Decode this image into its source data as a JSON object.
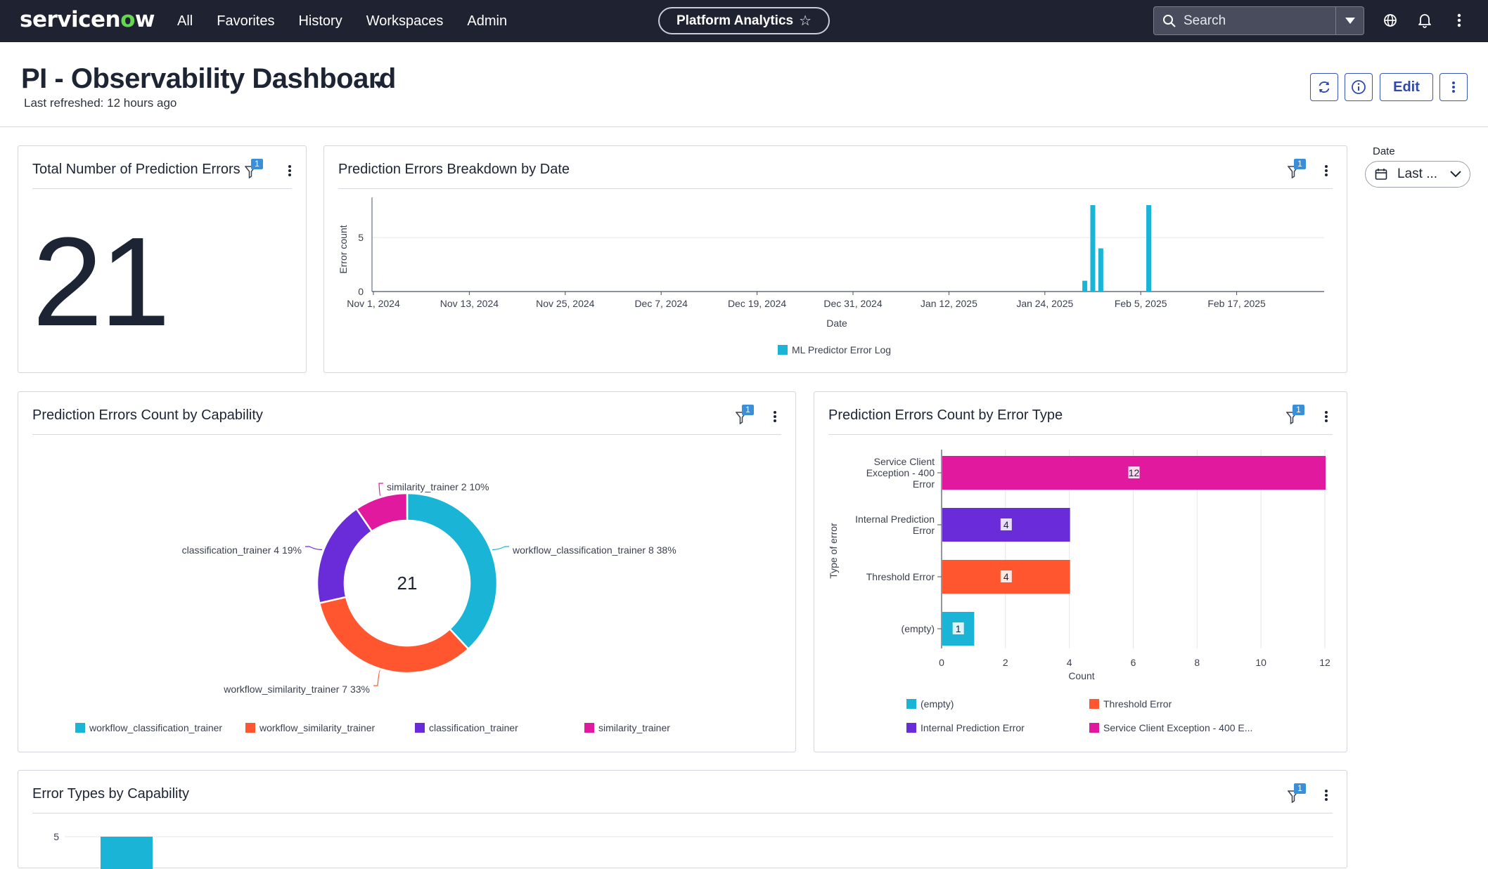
{
  "nav": {
    "logo_pre": "servicen",
    "logo_accent": "o",
    "logo_post": "w",
    "items": [
      "All",
      "Favorites",
      "History",
      "Workspaces",
      "Admin"
    ],
    "app_pill": "Platform Analytics",
    "search_placeholder": "Search"
  },
  "dashboard": {
    "title": "PI - Observability Dashboard",
    "refreshed": "Last refreshed: 12 hours ago",
    "edit_label": "Edit",
    "date_filter_label": "Date",
    "date_filter_value": "Last ..."
  },
  "cards": {
    "total": {
      "title": "Total Number of Prediction Errors",
      "value": "21",
      "filter_count": "1"
    },
    "by_date": {
      "title": "Prediction Errors Breakdown by Date",
      "filter_count": "1"
    },
    "by_capability": {
      "title": "Prediction Errors Count by Capability",
      "filter_count": "1"
    },
    "by_error_type": {
      "title": "Prediction Errors Count by Error Type",
      "filter_count": "1"
    },
    "types_by_capability": {
      "title": "Error Types by Capability",
      "filter_count": "1"
    }
  },
  "colors": {
    "cyan": "#1ab5d6",
    "orange": "#ff5630",
    "purple": "#6a2bd9",
    "magenta": "#e0199f"
  },
  "chart_data": [
    {
      "type": "bar",
      "title": "Prediction Errors Breakdown by Date",
      "xlabel": "Date",
      "ylabel": "Error count",
      "x_ticks": [
        "Nov 1, 2024",
        "Nov 13, 2024",
        "Nov 25, 2024",
        "Dec 7, 2024",
        "Dec 19, 2024",
        "Dec 31, 2024",
        "Jan 12, 2025",
        "Jan 24, 2025",
        "Feb 5, 2025",
        "Feb 17, 2025"
      ],
      "y_ticks": [
        0,
        5
      ],
      "ylim": [
        0,
        8
      ],
      "series": [
        {
          "name": "ML Predictor Error Log",
          "points": [
            {
              "x": "Jan 29, 2025",
              "y": 1
            },
            {
              "x": "Jan 30, 2025",
              "y": 8
            },
            {
              "x": "Jan 31, 2025",
              "y": 4
            },
            {
              "x": "Feb 6, 2025",
              "y": 8
            }
          ]
        }
      ]
    },
    {
      "type": "pie",
      "title": "Prediction Errors Count by Capability",
      "center_label": "21",
      "slices": [
        {
          "label": "workflow_classification_trainer",
          "value": 8,
          "percent": "38%"
        },
        {
          "label": "workflow_similarity_trainer",
          "value": 7,
          "percent": "33%"
        },
        {
          "label": "classification_trainer",
          "value": 4,
          "percent": "19%"
        },
        {
          "label": "similarity_trainer",
          "value": 2,
          "percent": "10%"
        }
      ]
    },
    {
      "type": "bar",
      "orientation": "horizontal",
      "title": "Prediction Errors Count by Error Type",
      "xlabel": "Count",
      "ylabel": "Type of error",
      "x_ticks": [
        0,
        2,
        4,
        6,
        8,
        10,
        12
      ],
      "xlim": [
        0,
        12
      ],
      "bars": [
        {
          "label_lines": [
            "Service Client",
            "Exception - 400",
            "Error"
          ],
          "value": 12
        },
        {
          "label_lines": [
            "Internal Prediction",
            "Error"
          ],
          "value": 4
        },
        {
          "label_lines": [
            "Threshold Error"
          ],
          "value": 4
        },
        {
          "label_lines": [
            "(empty)"
          ],
          "value": 1
        }
      ],
      "legend": [
        "(empty)",
        "Threshold Error",
        "Internal Prediction Error",
        "Service Client Exception - 400 E..."
      ]
    },
    {
      "type": "bar",
      "title": "Error Types by Capability",
      "y_ticks": [
        5
      ],
      "ylim": [
        0,
        5
      ]
    }
  ]
}
